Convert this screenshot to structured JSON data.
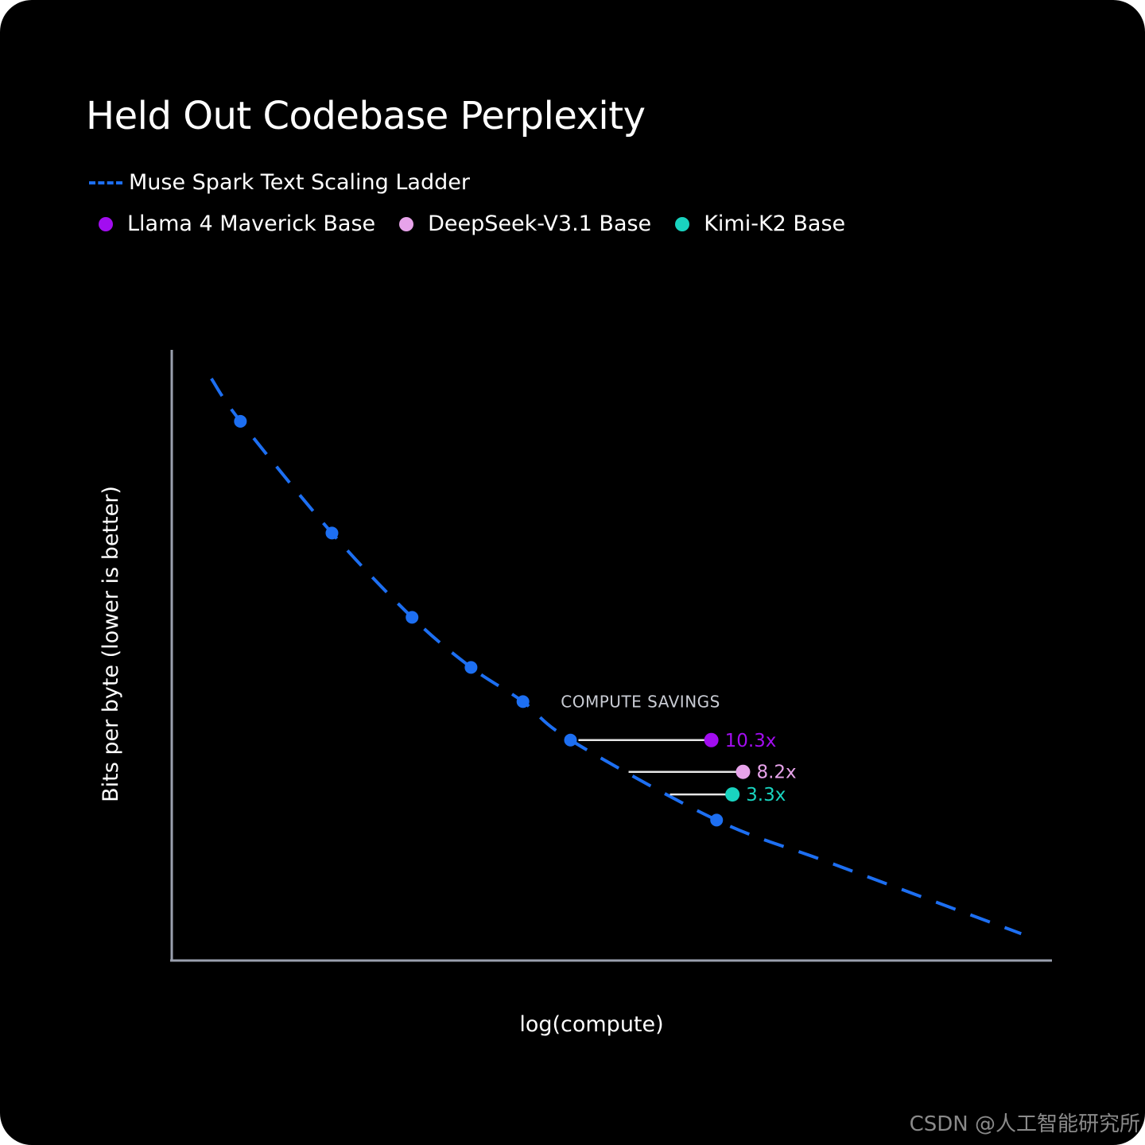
{
  "colors": {
    "background": "#000000",
    "ladder": "#1d6ff2",
    "axis": "#9aa0ae",
    "connector": "#e6e6e6",
    "annotation": "#c9ccd4"
  },
  "chart_data": {
    "type": "line",
    "title": "Held Out Codebase Perplexity",
    "xlabel": "log(compute)",
    "ylabel": "Bits per byte (lower is better)",
    "xlim": [
      0,
      100
    ],
    "ylim": [
      0,
      100
    ],
    "grid": false,
    "legend_placement": "top-left",
    "series": [
      {
        "name": "Muse Spark Text Scaling Ladder",
        "style": "dashed",
        "color": "#1d6ff2",
        "curve": {
          "x": [
            4.5,
            7.8,
            18.2,
            27.3,
            34.0,
            39.9,
            45.3,
            61.9,
            74.8,
            96.5
          ],
          "y": [
            95.3,
            88.3,
            70.0,
            56.2,
            48.0,
            42.4,
            36.1,
            23.0,
            16.0,
            4.4
          ]
        },
        "points": {
          "x": [
            7.8,
            18.2,
            27.3,
            34.0,
            39.9,
            45.3,
            61.9
          ],
          "y": [
            88.3,
            70.0,
            56.2,
            48.0,
            42.4,
            36.1,
            23.0
          ]
        }
      }
    ],
    "comparisons": [
      {
        "name": "Llama 4 Maverick Base",
        "color": "#a20df0",
        "x": 61.3,
        "y": 36.1,
        "x_from": 46.2,
        "savings_label": "10.3x"
      },
      {
        "name": "DeepSeek-V3.1 Base",
        "color": "#e7a3ea",
        "x": 64.9,
        "y": 30.9,
        "x_from": 51.9,
        "savings_label": "8.2x"
      },
      {
        "name": "Kimi-K2 Base",
        "color": "#19d3bf",
        "x": 63.7,
        "y": 27.2,
        "x_from": 56.6,
        "savings_label": "3.3x"
      }
    ],
    "annotations": [
      {
        "text": "COMPUTE SAVINGS",
        "x": 44.2,
        "y": 41.5
      }
    ]
  },
  "watermark": "CSDN @人工智能研究所"
}
